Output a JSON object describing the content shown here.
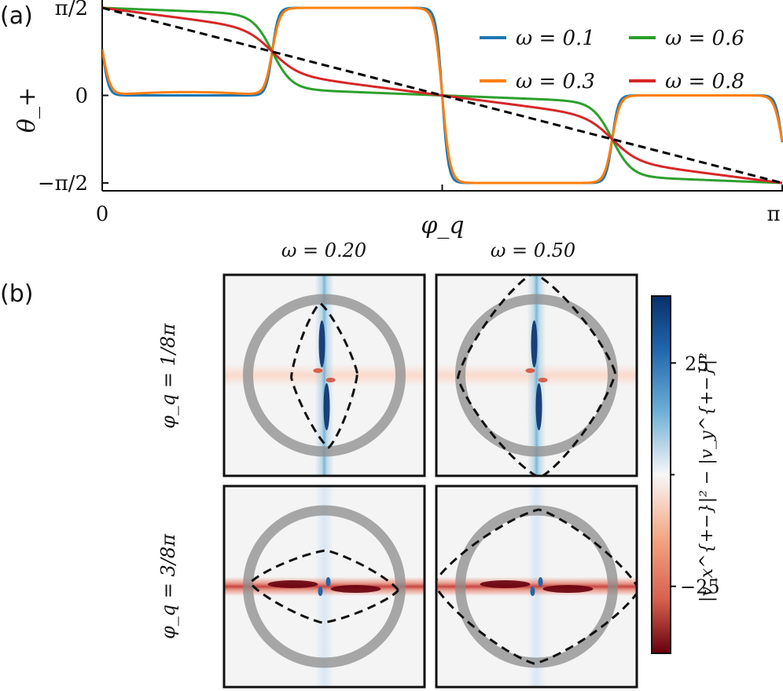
{
  "chart_data": [
    {
      "type": "line",
      "panel_label": "(a)",
      "xlabel": "φ_q",
      "ylabel": "θ_+",
      "xlim": [
        0,
        3.14159
      ],
      "ylim": [
        -1.6,
        1.6
      ],
      "xticks": [
        {
          "value": 0,
          "label": "0"
        },
        {
          "value": 1.5708,
          "label": ""
        },
        {
          "value": 3.14159,
          "label": "π"
        }
      ],
      "yticks": [
        {
          "value": 1.5708,
          "label": "π/2"
        },
        {
          "value": 0,
          "label": "0"
        },
        {
          "value": -1.5708,
          "label": "−π/2"
        }
      ],
      "legend_position": "top-right",
      "series": [
        {
          "name": "ω = 0.1",
          "omega": 0.1,
          "color": "#1f77b4"
        },
        {
          "name": "ω = 0.3",
          "omega": 0.3,
          "color": "#ff7f0e"
        },
        {
          "name": "ω = 0.6",
          "omega": 0.6,
          "color": "#2ca02c"
        },
        {
          "name": "ω = 0.8",
          "omega": 0.8,
          "color": "#d62728"
        },
        {
          "name": "",
          "dashed": true,
          "color": "#000000",
          "x": [
            0,
            3.14159
          ],
          "y": [
            1.5708,
            -1.5708
          ]
        }
      ]
    },
    {
      "type": "heatmap",
      "panel_label": "(b)",
      "column_titles": [
        "ω = 0.20",
        "ω = 0.50"
      ],
      "row_labels": [
        "φ_q = 1/8π",
        "φ_q = 3/8π"
      ],
      "colorbar": {
        "label": "|v_x^{+−}|² − |v_y^{+−}|²",
        "ticks": [
          {
            "value": 25,
            "label": "25"
          },
          {
            "value": -25,
            "label": "−25"
          }
        ],
        "range": [
          -40,
          40
        ],
        "colormap": "RdBu",
        "positive_color": "#08306b",
        "negative_color": "#67000d"
      },
      "maps": [
        {
          "row": 0,
          "col": 0,
          "omega": 0.2,
          "phi_q": "1/8π",
          "band": "vertical",
          "contour_half_width": 0.42,
          "contour_half_height": 0.92,
          "contour_rotation": 0.06
        },
        {
          "row": 0,
          "col": 1,
          "omega": 0.5,
          "phi_q": "1/8π",
          "band": "vertical",
          "contour_half_width": 1.0,
          "contour_half_height": 1.3,
          "contour_rotation": 0.03
        },
        {
          "row": 1,
          "col": 0,
          "omega": 0.2,
          "phi_q": "3/8π",
          "band": "horizontal",
          "contour_half_width": 0.94,
          "contour_half_height": 0.46,
          "contour_rotation": -0.05
        },
        {
          "row": 1,
          "col": 1,
          "omega": 0.5,
          "phi_q": "3/8π",
          "band": "horizontal",
          "contour_half_width": 1.3,
          "contour_half_height": 0.98,
          "contour_rotation": -0.03
        }
      ]
    }
  ]
}
